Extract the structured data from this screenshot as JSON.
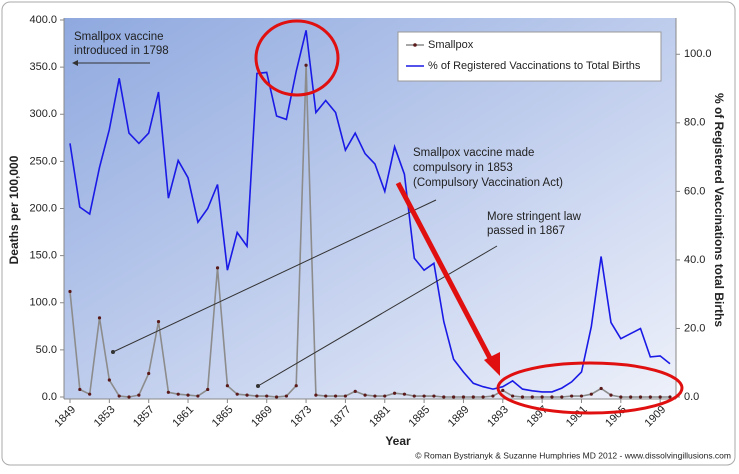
{
  "chart_data": {
    "type": "line",
    "x": [
      1849,
      1850,
      1851,
      1852,
      1853,
      1854,
      1855,
      1856,
      1857,
      1858,
      1859,
      1860,
      1861,
      1862,
      1863,
      1864,
      1865,
      1866,
      1867,
      1868,
      1869,
      1870,
      1871,
      1872,
      1873,
      1874,
      1875,
      1876,
      1877,
      1878,
      1879,
      1880,
      1881,
      1882,
      1883,
      1884,
      1885,
      1886,
      1887,
      1888,
      1889,
      1890,
      1891,
      1892,
      1893,
      1894,
      1895,
      1896,
      1897,
      1898,
      1899,
      1900,
      1901,
      1902,
      1903,
      1904,
      1905,
      1906,
      1907,
      1908,
      1909,
      1910
    ],
    "series": [
      {
        "name": "Smallpox",
        "color": "#8c8c8c",
        "axis": "y",
        "values": [
          112,
          8,
          3,
          84,
          18,
          1,
          0,
          2,
          25,
          80,
          5,
          3,
          2,
          1,
          8,
          137,
          12,
          3,
          2,
          1,
          1,
          0,
          1,
          12,
          352,
          2,
          1,
          1,
          1,
          6,
          2,
          1,
          1,
          4,
          3,
          1,
          1,
          1,
          0,
          0,
          0,
          0,
          0,
          1,
          7,
          1,
          0,
          0,
          0,
          0,
          0,
          1,
          1,
          3,
          9,
          2,
          0,
          0,
          0,
          0,
          0,
          0
        ]
      },
      {
        "name": "% of Registered Vaccinations to Total Births",
        "color": "#1a1ae6",
        "axis": "y2",
        "values": [
          74,
          55.4,
          53.4,
          67,
          78,
          93,
          77,
          74,
          77,
          89,
          58,
          69,
          64,
          51,
          55,
          62,
          37,
          48,
          44,
          94.4,
          94.7,
          82,
          81,
          95,
          107,
          83,
          86.5,
          83,
          72,
          77,
          71,
          68,
          60,
          73,
          65,
          40.5,
          37,
          39,
          22,
          11,
          7.3,
          4,
          3,
          2.3,
          3,
          4.7,
          2.3,
          1.8,
          1.5,
          1.5,
          2.6,
          4.4,
          7.3,
          20.5,
          41,
          21.7,
          17,
          18.5,
          20,
          11.7,
          12,
          9.7
        ]
      }
    ],
    "xlim": [
      1849,
      1910
    ],
    "xticks": [
      1849,
      1853,
      1857,
      1861,
      1865,
      1869,
      1873,
      1877,
      1881,
      1885,
      1889,
      1893,
      1897,
      1901,
      1905,
      1909
    ],
    "ylim": [
      0,
      400
    ],
    "yticks": [
      {
        "value": 0,
        "label": "0.0"
      },
      {
        "value": 50,
        "label": "50.0"
      },
      {
        "value": 100,
        "label": "100.0"
      },
      {
        "value": 150,
        "label": "150.0"
      },
      {
        "value": 200,
        "label": "200.0"
      },
      {
        "value": 250,
        "label": "250.0"
      },
      {
        "value": 300,
        "label": "300.0"
      },
      {
        "value": 350,
        "label": "350.0"
      },
      {
        "value": 400,
        "label": "400.0"
      }
    ],
    "y2lim": [
      0,
      110
    ],
    "y2ticks": [
      {
        "value": 0,
        "label": "0.0"
      },
      {
        "value": 20,
        "label": "20.0"
      },
      {
        "value": 40,
        "label": "40.0"
      },
      {
        "value": 60,
        "label": "60.0"
      },
      {
        "value": 80,
        "label": "80.0"
      },
      {
        "value": 100,
        "label": "100.0"
      }
    ],
    "xlabel": "Year",
    "ylabel": "Deaths per 100,000",
    "y2label": "% of Registered Vaccinations total Births",
    "legend": "upper right",
    "annotations": [
      "Smallpox vaccine",
      "introduced in 1798",
      "Smallpox vaccine made",
      "compulsory in 1853",
      "(Compulsory Vaccination Act)",
      "More stringent law",
      "passed in 1867"
    ],
    "credit": "© Roman Bystrianyk & Suzanne Humphries MD 2012 - www.dissolvingillusions.com"
  }
}
